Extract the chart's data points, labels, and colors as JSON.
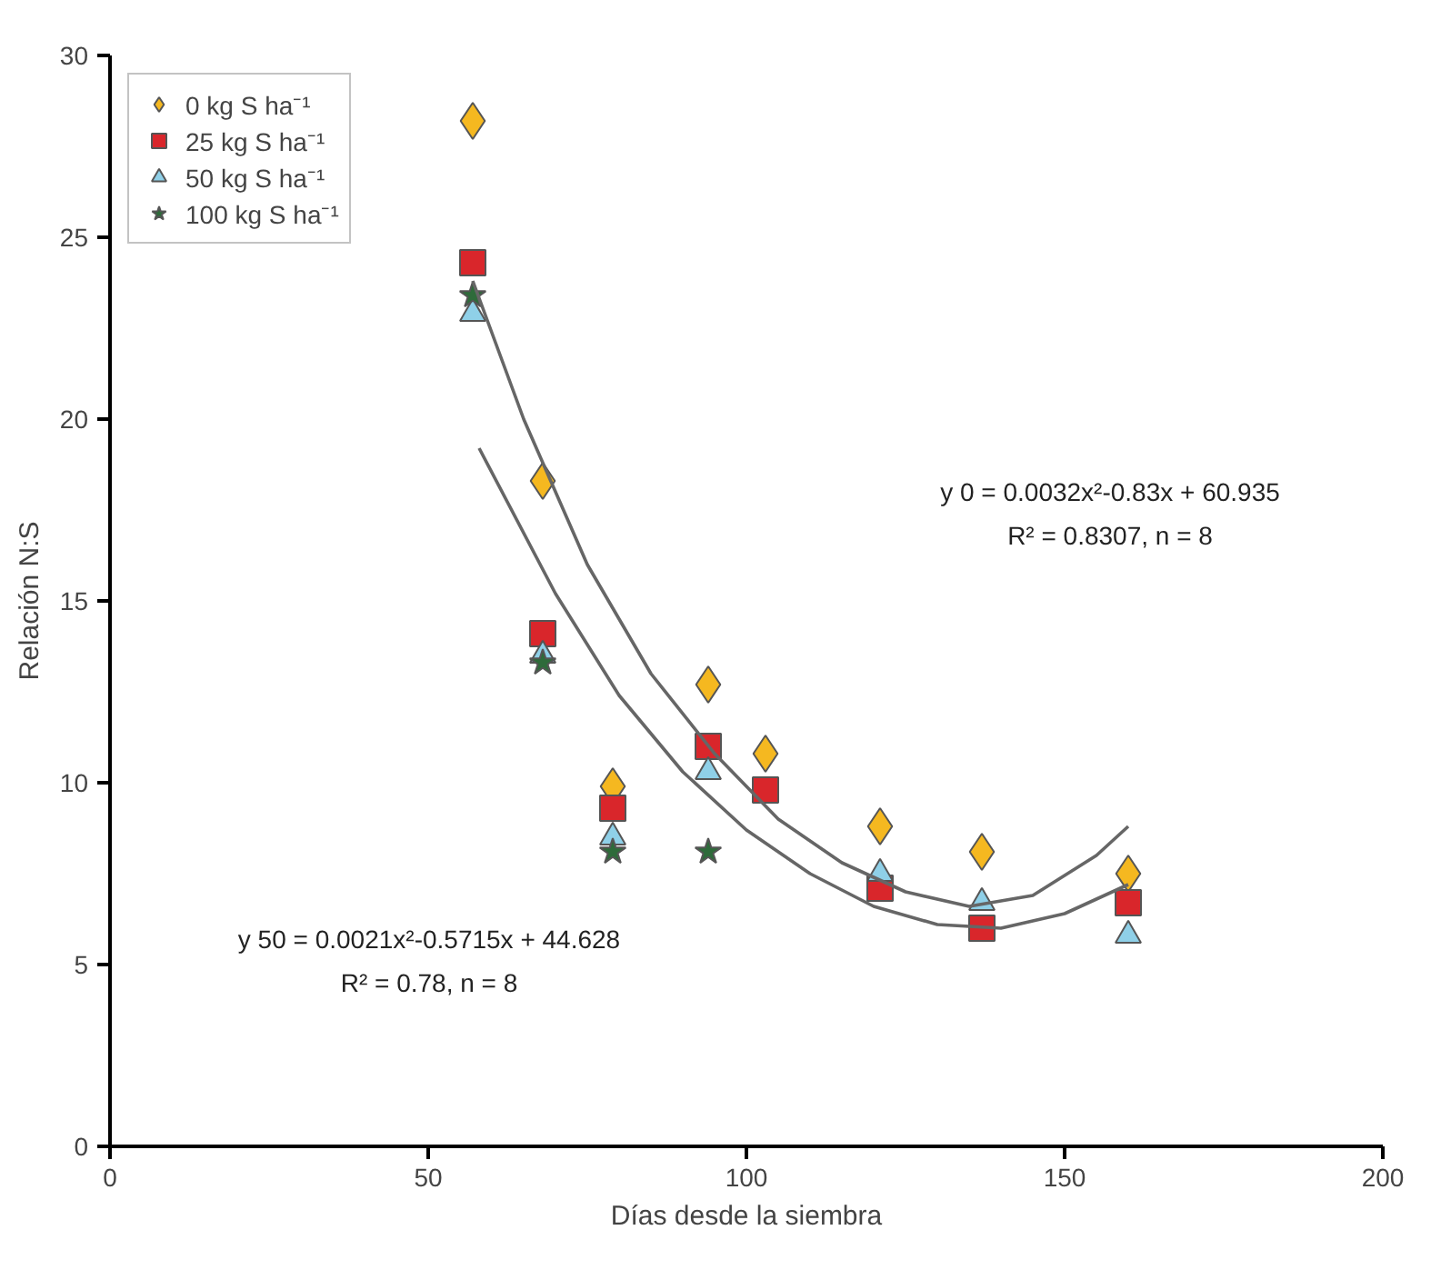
{
  "chart_data": {
    "type": "scatter",
    "xlabel": "Días desde la siembra",
    "ylabel": "Relación N:S",
    "x": [
      57,
      68,
      79,
      94,
      103,
      121,
      137,
      160
    ],
    "xlim": [
      0,
      200
    ],
    "xticks": [
      0,
      50,
      100,
      150,
      200
    ],
    "ylim": [
      0,
      30
    ],
    "yticks": [
      0,
      5,
      10,
      15,
      20,
      25,
      30
    ],
    "grid": false,
    "legend": "top left",
    "series": [
      {
        "name": "0 kg S ha⁻¹",
        "color": "#f5b820",
        "marker": "diamond",
        "values": [
          28.2,
          18.3,
          9.9,
          12.7,
          10.8,
          8.8,
          8.1,
          7.5
        ]
      },
      {
        "name": "25 kg S ha⁻¹",
        "color": "#d9262b",
        "marker": "square",
        "values": [
          24.3,
          14.1,
          9.3,
          11.0,
          9.8,
          7.1,
          6.0,
          6.7
        ]
      },
      {
        "name": "50 kg S ha⁻¹",
        "color": "#8fd0e8",
        "marker": "triangle",
        "values": [
          22.9,
          13.5,
          8.5,
          10.3,
          null,
          7.5,
          6.7,
          5.8
        ]
      },
      {
        "name": "100 kg S ha⁻¹",
        "color": "#2e6b3a",
        "marker": "star",
        "values": [
          23.4,
          13.3,
          8.1,
          8.1,
          null,
          null,
          null,
          null
        ]
      },
      {
        "type": "line",
        "color": "#666666",
        "marker": "none",
        "x": [
          57,
          65,
          75,
          85,
          95,
          105,
          115,
          125,
          135,
          145,
          155,
          160
        ],
        "values": [
          23.8,
          20.0,
          16.0,
          13.0,
          10.8,
          9.0,
          7.8,
          7.0,
          6.6,
          6.9,
          8.0,
          8.8
        ]
      },
      {
        "type": "line",
        "color": "#666666",
        "marker": "none",
        "x": [
          58,
          70,
          80,
          90,
          100,
          110,
          120,
          130,
          140,
          150,
          160
        ],
        "values": [
          19.2,
          15.2,
          12.4,
          10.3,
          8.7,
          7.5,
          6.6,
          6.1,
          6.0,
          6.4,
          7.2
        ]
      }
    ],
    "annotations": [
      "y 0 = 0.0032x²-0.83x + 60.935",
      "R² = 0.8307, n = 8",
      "y 50 = 0.0021x²-0.5715x + 44.628",
      "R² = 0.78, n = 8"
    ]
  }
}
